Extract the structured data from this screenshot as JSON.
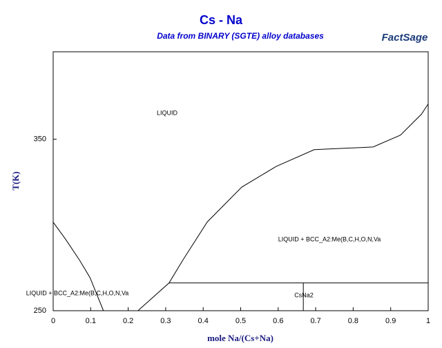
{
  "chart_data": {
    "type": "line",
    "title": "Cs - Na",
    "subtitle": "Data from BINARY (SGTE) alloy databases",
    "logo": "FactSage",
    "x_label": "mole Na/(Cs+Na)",
    "y_label": "T(K)",
    "xlim": [
      0,
      1
    ],
    "ylim": [
      250,
      401
    ],
    "xticks": [
      0,
      0.1,
      0.2,
      0.3,
      0.4,
      0.5,
      0.6,
      0.7,
      0.8,
      0.9,
      1
    ],
    "yticks": [
      250,
      350
    ],
    "annotations": [
      "LIQUID",
      "LIQUID + BCC_A2:Me(B,C,H,O,N,Va",
      "LIQUID + BCC_A2:Me(B,C,H,O,N,Va",
      "CsNa2"
    ],
    "series": [
      {
        "color": "#000000",
        "x": [
          0,
          0.033,
          0.07,
          0.098,
          0.134
        ],
        "values": [
          301.6,
          291.7,
          279.6,
          269.4,
          250
        ]
      },
      {
        "color": "#000000",
        "x": [
          0.226,
          0.309,
          0.346,
          0.411,
          0.503,
          0.595,
          0.696,
          0.853,
          0.926,
          0.982,
          1
        ],
        "values": [
          250,
          266.2,
          279.6,
          301.8,
          322.1,
          334.2,
          343.9,
          345.5,
          352.4,
          364.6,
          370.6
        ]
      },
      {
        "color": "#000000",
        "x": [
          0.309,
          1
        ],
        "values": [
          266.2,
          266.2
        ]
      },
      {
        "color": "#000000",
        "x": [
          0.667,
          0.667
        ],
        "values": [
          250,
          266.2
        ]
      }
    ]
  }
}
